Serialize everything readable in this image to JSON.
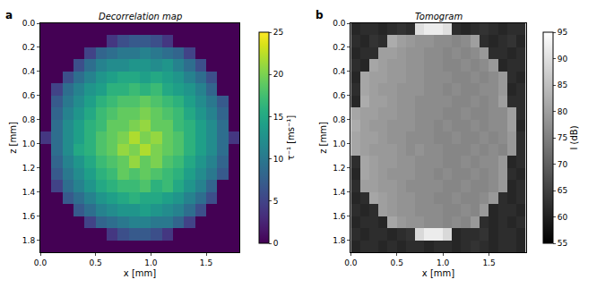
{
  "chart_data": [
    {
      "type": "heatmap",
      "panel": "a",
      "title": "Decorrelation map",
      "x_label": "x [mm]",
      "y_label": "z [mm]",
      "color": "viridis",
      "xlim": [
        0,
        1.8
      ],
      "ylim": [
        1.9,
        0
      ],
      "xticks": [
        {
          "value": 0,
          "label": "0.0"
        },
        0.5,
        {
          "value": 1,
          "label": "1.0"
        },
        1.5
      ],
      "yticks": [
        {
          "value": 0,
          "label": "0.0"
        },
        0.2,
        0.4,
        0.6,
        0.8,
        {
          "value": 1,
          "label": "1.0"
        },
        1.2,
        1.4,
        1.6,
        1.8
      ],
      "x": [
        0.05,
        0.15,
        0.25,
        0.35,
        0.45,
        0.55,
        0.65,
        0.75,
        0.85,
        0.95,
        1.05,
        1.15,
        1.25,
        1.35,
        1.45,
        1.55,
        1.65,
        1.75
      ],
      "y": [
        0.05,
        0.15,
        0.25,
        0.35,
        0.45,
        0.55,
        0.65,
        0.75,
        0.85,
        0.95,
        1.05,
        1.15,
        1.25,
        1.35,
        1.45,
        1.55,
        1.65,
        1.75,
        1.85
      ],
      "z": [
        [
          0,
          0,
          0,
          0,
          0,
          0,
          0,
          0,
          0,
          0,
          0,
          0,
          0,
          0,
          0,
          0,
          0,
          0
        ],
        [
          0,
          0,
          0,
          0,
          0,
          0,
          4,
          6,
          7,
          7,
          6,
          4,
          0,
          0,
          0,
          0,
          0,
          0
        ],
        [
          0,
          0,
          0,
          0,
          5,
          8,
          9,
          10,
          10,
          11,
          10,
          9,
          8,
          5,
          0,
          0,
          0,
          0
        ],
        [
          0,
          0,
          0,
          6,
          9,
          11,
          12,
          12,
          13,
          13,
          12,
          13,
          11,
          9,
          6,
          0,
          0,
          0
        ],
        [
          0,
          0,
          6,
          9,
          11,
          13,
          14,
          15,
          15,
          14,
          15,
          14,
          13,
          11,
          9,
          6,
          0,
          0
        ],
        [
          0,
          5,
          9,
          11,
          13,
          14,
          16,
          16,
          17,
          16,
          17,
          15,
          14,
          13,
          11,
          8,
          0,
          0
        ],
        [
          0,
          7,
          10,
          12,
          14,
          16,
          17,
          18,
          18,
          19,
          18,
          17,
          16,
          14,
          12,
          10,
          7,
          0
        ],
        [
          0,
          8,
          11,
          13,
          15,
          17,
          18,
          19,
          19,
          20,
          19,
          18,
          17,
          15,
          13,
          11,
          8,
          0
        ],
        [
          0,
          9,
          12,
          14,
          16,
          17,
          19,
          19,
          20,
          21,
          19,
          19,
          17,
          16,
          14,
          12,
          9,
          0
        ],
        [
          4,
          9,
          12,
          14,
          16,
          18,
          19,
          20,
          22,
          20,
          21,
          19,
          18,
          16,
          14,
          12,
          9,
          4
        ],
        [
          0,
          9,
          12,
          15,
          16,
          18,
          19,
          21,
          20,
          22,
          20,
          19,
          18,
          16,
          14,
          12,
          9,
          0
        ],
        [
          0,
          8,
          11,
          13,
          15,
          17,
          18,
          19,
          21,
          19,
          20,
          18,
          17,
          15,
          13,
          11,
          8,
          0
        ],
        [
          0,
          7,
          10,
          12,
          14,
          16,
          17,
          19,
          18,
          19,
          18,
          17,
          16,
          14,
          12,
          10,
          7,
          0
        ],
        [
          0,
          5,
          9,
          11,
          13,
          15,
          16,
          17,
          17,
          18,
          16,
          17,
          15,
          13,
          11,
          8,
          0,
          0
        ],
        [
          0,
          0,
          7,
          9,
          11,
          13,
          14,
          15,
          16,
          15,
          15,
          14,
          13,
          11,
          9,
          6,
          0,
          0
        ],
        [
          0,
          0,
          0,
          7,
          9,
          11,
          12,
          13,
          13,
          14,
          13,
          12,
          11,
          9,
          6,
          0,
          0,
          0
        ],
        [
          0,
          0,
          0,
          0,
          5,
          8,
          9,
          10,
          11,
          11,
          10,
          10,
          8,
          5,
          0,
          0,
          0,
          0
        ],
        [
          0,
          0,
          0,
          0,
          0,
          0,
          4,
          6,
          7,
          7,
          6,
          4,
          0,
          0,
          0,
          0,
          0,
          0
        ],
        [
          0,
          0,
          0,
          0,
          0,
          0,
          0,
          0,
          0,
          0,
          0,
          0,
          0,
          0,
          0,
          0,
          0,
          0
        ]
      ],
      "colorbar": {
        "title": "τ⁻¹ [ms⁻¹]",
        "range": [
          0,
          25
        ],
        "ticks": [
          0,
          5,
          10,
          15,
          20,
          25
        ]
      }
    },
    {
      "type": "heatmap",
      "panel": "b",
      "title": "Tomogram",
      "x_label": "x [mm]",
      "y_label": "z [mm]",
      "color": "gray",
      "xlim": [
        0,
        1.9
      ],
      "ylim": [
        1.9,
        0
      ],
      "xticks": [
        {
          "value": 0,
          "label": "0.0"
        },
        0.5,
        {
          "value": 1,
          "label": "1.0"
        },
        1.5
      ],
      "yticks": [
        {
          "value": 0,
          "label": "0.0"
        },
        0.2,
        0.4,
        0.6,
        0.8,
        {
          "value": 1,
          "label": "1.0"
        },
        1.2,
        1.4,
        1.6,
        1.8
      ],
      "x": [
        0.05,
        0.15,
        0.25,
        0.35,
        0.45,
        0.55,
        0.65,
        0.75,
        0.85,
        0.95,
        1.05,
        1.15,
        1.25,
        1.35,
        1.45,
        1.55,
        1.65,
        1.75,
        1.85
      ],
      "y": [
        0.05,
        0.15,
        0.25,
        0.35,
        0.45,
        0.55,
        0.65,
        0.75,
        0.85,
        0.95,
        1.05,
        1.15,
        1.25,
        1.35,
        1.45,
        1.55,
        1.65,
        1.75,
        1.85
      ],
      "z": [
        [
          61,
          62,
          62,
          61,
          62,
          63,
          62,
          90,
          92,
          92,
          90,
          62,
          61,
          62,
          63,
          62,
          61,
          62,
          62
        ],
        [
          62,
          61,
          63,
          62,
          82,
          80,
          79,
          78,
          78,
          77,
          77,
          76,
          77,
          80,
          62,
          61,
          62,
          63,
          61
        ],
        [
          61,
          62,
          62,
          80,
          80,
          79,
          78,
          78,
          77,
          77,
          76,
          77,
          76,
          77,
          79,
          62,
          62,
          61,
          62
        ],
        [
          62,
          61,
          81,
          80,
          79,
          79,
          78,
          78,
          77,
          77,
          76,
          76,
          77,
          76,
          77,
          79,
          61,
          62,
          62
        ],
        [
          61,
          81,
          80,
          80,
          79,
          79,
          78,
          78,
          77,
          77,
          77,
          76,
          76,
          77,
          76,
          77,
          79,
          62,
          61
        ],
        [
          62,
          81,
          80,
          79,
          79,
          78,
          78,
          78,
          77,
          77,
          76,
          77,
          76,
          76,
          77,
          77,
          79,
          61,
          62
        ],
        [
          61,
          82,
          80,
          80,
          79,
          78,
          78,
          77,
          77,
          77,
          77,
          76,
          76,
          77,
          76,
          77,
          80,
          62,
          62
        ],
        [
          81,
          80,
          80,
          79,
          79,
          78,
          78,
          77,
          77,
          77,
          76,
          76,
          77,
          76,
          76,
          77,
          77,
          80,
          62
        ],
        [
          82,
          80,
          79,
          79,
          78,
          78,
          78,
          77,
          77,
          76,
          77,
          76,
          76,
          77,
          76,
          77,
          77,
          80,
          61
        ],
        [
          81,
          80,
          80,
          79,
          78,
          78,
          77,
          77,
          77,
          76,
          76,
          77,
          76,
          76,
          77,
          76,
          77,
          79,
          62
        ],
        [
          81,
          80,
          79,
          79,
          79,
          78,
          77,
          78,
          77,
          77,
          76,
          76,
          76,
          77,
          76,
          77,
          76,
          79,
          62
        ],
        [
          62,
          81,
          80,
          79,
          79,
          78,
          78,
          77,
          77,
          77,
          76,
          76,
          77,
          76,
          77,
          77,
          79,
          61,
          62
        ],
        [
          61,
          81,
          80,
          79,
          78,
          78,
          78,
          77,
          77,
          76,
          77,
          76,
          76,
          77,
          76,
          77,
          79,
          62,
          61
        ],
        [
          62,
          80,
          80,
          79,
          79,
          78,
          77,
          77,
          77,
          77,
          76,
          76,
          77,
          76,
          76,
          77,
          79,
          61,
          62
        ],
        [
          61,
          62,
          81,
          80,
          79,
          78,
          78,
          77,
          77,
          76,
          76,
          77,
          76,
          76,
          77,
          79,
          62,
          61,
          62
        ],
        [
          62,
          61,
          62,
          80,
          79,
          78,
          78,
          77,
          77,
          77,
          76,
          76,
          77,
          76,
          79,
          61,
          62,
          62,
          61
        ],
        [
          61,
          62,
          62,
          61,
          81,
          79,
          78,
          78,
          77,
          77,
          76,
          77,
          76,
          79,
          62,
          61,
          62,
          61,
          62
        ],
        [
          62,
          61,
          62,
          62,
          61,
          62,
          63,
          89,
          92,
          92,
          89,
          61,
          62,
          62,
          63,
          61,
          62,
          62,
          61
        ],
        [
          61,
          62,
          62,
          61,
          62,
          61,
          62,
          62,
          61,
          62,
          62,
          61,
          62,
          63,
          62,
          61,
          62,
          62,
          61
        ]
      ],
      "colorbar": {
        "title": "I (dB)",
        "range": [
          55,
          95
        ],
        "ticks": [
          55,
          60,
          65,
          70,
          75,
          80,
          85,
          90,
          95
        ]
      }
    }
  ]
}
